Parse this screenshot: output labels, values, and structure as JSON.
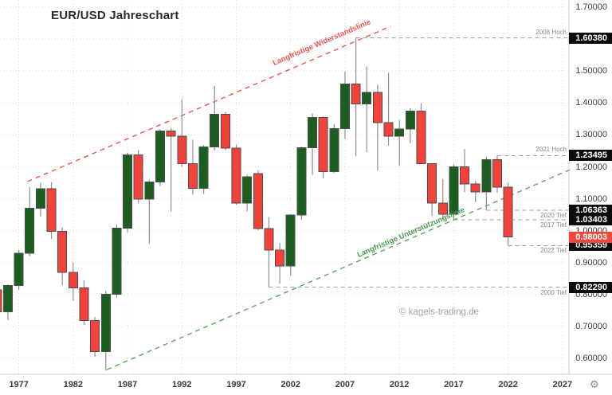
{
  "title": "EUR/USD Jahreschart",
  "watermark": "© kagels-trading.de",
  "icons": {
    "settings": "gear-icon",
    "settings_glyph": "⚙"
  },
  "colors": {
    "up": "#1b5e20",
    "down": "#f2423a",
    "body_border": "#4d4d4d",
    "wick": "#8f8f8f",
    "grid": "#dddddd",
    "axis_line": "#cfcfcf",
    "tick_text": "#3c3c3c",
    "annotation_line": "#9e9e9e",
    "annotation_text": "#8a8a8a",
    "price_box_bg": "#0a0a0a",
    "price_box_text": "#ffffff",
    "current_price_box_bg": "#f4453c",
    "resistance_line": "#ef5350",
    "support_line": "#5ba563"
  },
  "y_axis": {
    "ticks": [
      "1.70000",
      "1.50000",
      "1.40000",
      "1.30000",
      "1.20000",
      "1.10000",
      "1.00000",
      "0.90000",
      "0.80000",
      "0.70000",
      "0.60000"
    ]
  },
  "x_axis": {
    "years": [
      1977,
      1982,
      1987,
      1992,
      1997,
      2002,
      2007,
      2012,
      2017,
      2022,
      2027
    ]
  },
  "price_boxes": [
    {
      "text": "1.60380",
      "price": 1.6038,
      "style": "black"
    },
    {
      "text": "1.23495",
      "price": 1.23495,
      "style": "black"
    },
    {
      "text": "1.06363",
      "price": 1.06363,
      "style": "black"
    },
    {
      "text": "1.03403",
      "price": 1.03403,
      "style": "black"
    },
    {
      "text": "0.95359",
      "price": 0.95359,
      "style": "black"
    },
    {
      "text": "0.82290",
      "price": 0.8229,
      "style": "black"
    },
    {
      "text": "0.98003",
      "price": 0.98003,
      "style": "current"
    }
  ],
  "annotations": [
    {
      "label": "2008 Hoch",
      "price": 1.6038,
      "from_year": 2008,
      "side": "above"
    },
    {
      "label": "2021 Hoch",
      "price": 1.23495,
      "from_year": 2021,
      "side": "above"
    },
    {
      "label": "2020 Tief",
      "price": 1.06363,
      "from_year": 2020,
      "side": "below"
    },
    {
      "label": "2017 Tief",
      "price": 1.03403,
      "from_year": 2017,
      "side": "below"
    },
    {
      "label": "2022 Tief",
      "price": 0.95359,
      "from_year": 2022,
      "side": "below"
    },
    {
      "label": "2000 Tief",
      "price": 0.8229,
      "from_year": 2000,
      "side": "below"
    }
  ],
  "trendlines": [
    {
      "name": "resistance",
      "label": "Langfristige Widerstandslinie",
      "color": "#ef5350",
      "x1_year": 1977.8,
      "p1": 1.154,
      "x2_year": 2011.2,
      "p2": 1.64
    },
    {
      "name": "support",
      "label": "Langfristige Unterstützungslinie",
      "color": "#5ba563",
      "x1_year": 1985.1,
      "p1": 0.565,
      "x2_year": 2027.7,
      "p2": 1.191
    }
  ],
  "chart_data": {
    "type": "candlestick",
    "timeframe": "yearly",
    "symbol": "EUR/USD",
    "title": "EUR/USD Jahreschart",
    "ylim": [
      0.6,
      1.7
    ],
    "x_years": [
      1975,
      2022
    ],
    "grid": true,
    "series": [
      {
        "year": 1975,
        "o": 0.815,
        "h": 0.845,
        "l": 0.74,
        "c": 0.746
      },
      {
        "year": 1976,
        "o": 0.746,
        "h": 0.832,
        "l": 0.72,
        "c": 0.828
      },
      {
        "year": 1977,
        "o": 0.828,
        "h": 0.94,
        "l": 0.815,
        "c": 0.929
      },
      {
        "year": 1978,
        "o": 0.929,
        "h": 1.137,
        "l": 0.92,
        "c": 1.07
      },
      {
        "year": 1979,
        "o": 1.07,
        "h": 1.15,
        "l": 1.045,
        "c": 1.131
      },
      {
        "year": 1980,
        "o": 1.131,
        "h": 1.152,
        "l": 0.975,
        "c": 0.998
      },
      {
        "year": 1981,
        "o": 0.998,
        "h": 1.01,
        "l": 0.829,
        "c": 0.869
      },
      {
        "year": 1982,
        "o": 0.869,
        "h": 0.9,
        "l": 0.78,
        "c": 0.821
      },
      {
        "year": 1983,
        "o": 0.821,
        "h": 0.845,
        "l": 0.705,
        "c": 0.719
      },
      {
        "year": 1984,
        "o": 0.719,
        "h": 0.73,
        "l": 0.605,
        "c": 0.621
      },
      {
        "year": 1985,
        "o": 0.621,
        "h": 0.812,
        "l": 0.562,
        "c": 0.801
      },
      {
        "year": 1986,
        "o": 0.801,
        "h": 1.02,
        "l": 0.79,
        "c": 1.008
      },
      {
        "year": 1987,
        "o": 1.008,
        "h": 1.245,
        "l": 0.995,
        "c": 1.238
      },
      {
        "year": 1988,
        "o": 1.238,
        "h": 1.252,
        "l": 1.085,
        "c": 1.099
      },
      {
        "year": 1989,
        "o": 1.099,
        "h": 1.16,
        "l": 0.959,
        "c": 1.153
      },
      {
        "year": 1990,
        "o": 1.153,
        "h": 1.318,
        "l": 1.14,
        "c": 1.312
      },
      {
        "year": 1991,
        "o": 1.312,
        "h": 1.322,
        "l": 1.06,
        "c": 1.296
      },
      {
        "year": 1992,
        "o": 1.296,
        "h": 1.411,
        "l": 1.2,
        "c": 1.21
      },
      {
        "year": 1993,
        "o": 1.21,
        "h": 1.285,
        "l": 1.113,
        "c": 1.133
      },
      {
        "year": 1994,
        "o": 1.133,
        "h": 1.268,
        "l": 1.115,
        "c": 1.262
      },
      {
        "year": 1995,
        "o": 1.262,
        "h": 1.454,
        "l": 1.25,
        "c": 1.364
      },
      {
        "year": 1996,
        "o": 1.364,
        "h": 1.372,
        "l": 1.252,
        "c": 1.258
      },
      {
        "year": 1997,
        "o": 1.258,
        "h": 1.27,
        "l": 1.08,
        "c": 1.087
      },
      {
        "year": 1998,
        "o": 1.087,
        "h": 1.175,
        "l": 1.06,
        "c": 1.169
      },
      {
        "year": 1999,
        "o": 1.179,
        "h": 1.19,
        "l": 1.002,
        "c": 1.007
      },
      {
        "year": 2000,
        "o": 1.007,
        "h": 1.042,
        "l": 0.823,
        "c": 0.939
      },
      {
        "year": 2001,
        "o": 0.939,
        "h": 0.962,
        "l": 0.834,
        "c": 0.89
      },
      {
        "year": 2002,
        "o": 0.89,
        "h": 1.051,
        "l": 0.859,
        "c": 1.049
      },
      {
        "year": 2003,
        "o": 1.049,
        "h": 1.263,
        "l": 1.034,
        "c": 1.26
      },
      {
        "year": 2004,
        "o": 1.26,
        "h": 1.367,
        "l": 1.175,
        "c": 1.355
      },
      {
        "year": 2005,
        "o": 1.355,
        "h": 1.358,
        "l": 1.164,
        "c": 1.185
      },
      {
        "year": 2006,
        "o": 1.185,
        "h": 1.334,
        "l": 1.181,
        "c": 1.32
      },
      {
        "year": 2007,
        "o": 1.32,
        "h": 1.498,
        "l": 1.287,
        "c": 1.459
      },
      {
        "year": 2008,
        "o": 1.459,
        "h": 1.604,
        "l": 1.233,
        "c": 1.397
      },
      {
        "year": 2009,
        "o": 1.397,
        "h": 1.514,
        "l": 1.246,
        "c": 1.433
      },
      {
        "year": 2010,
        "o": 1.433,
        "h": 1.457,
        "l": 1.188,
        "c": 1.338
      },
      {
        "year": 2011,
        "o": 1.338,
        "h": 1.494,
        "l": 1.267,
        "c": 1.296
      },
      {
        "year": 2012,
        "o": 1.296,
        "h": 1.347,
        "l": 1.204,
        "c": 1.319
      },
      {
        "year": 2013,
        "o": 1.319,
        "h": 1.383,
        "l": 1.274,
        "c": 1.374
      },
      {
        "year": 2014,
        "o": 1.374,
        "h": 1.399,
        "l": 1.21,
        "c": 1.21
      },
      {
        "year": 2015,
        "o": 1.21,
        "h": 1.211,
        "l": 1.046,
        "c": 1.086
      },
      {
        "year": 2016,
        "o": 1.086,
        "h": 1.162,
        "l": 1.035,
        "c": 1.052
      },
      {
        "year": 2017,
        "o": 1.052,
        "h": 1.208,
        "l": 1.034,
        "c": 1.2
      },
      {
        "year": 2018,
        "o": 1.2,
        "h": 1.256,
        "l": 1.121,
        "c": 1.147
      },
      {
        "year": 2019,
        "o": 1.147,
        "h": 1.155,
        "l": 1.089,
        "c": 1.121
      },
      {
        "year": 2020,
        "o": 1.121,
        "h": 1.231,
        "l": 1.064,
        "c": 1.222
      },
      {
        "year": 2021,
        "o": 1.222,
        "h": 1.235,
        "l": 1.119,
        "c": 1.137
      },
      {
        "year": 2022,
        "o": 1.137,
        "h": 1.149,
        "l": 0.954,
        "c": 0.98
      }
    ]
  }
}
